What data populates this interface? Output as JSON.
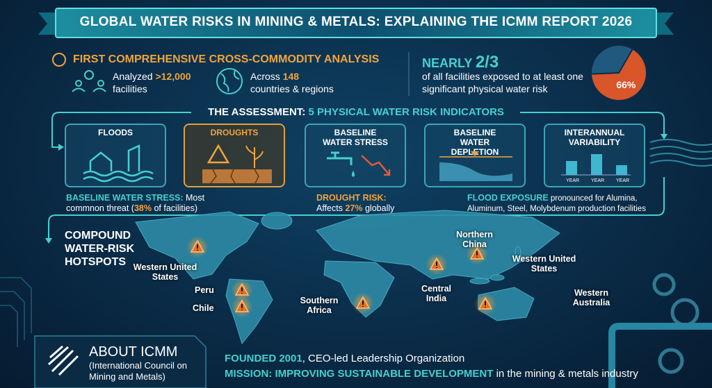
{
  "title": "GLOBAL WATER RISKS IN MINING & METALS: EXPLAINING THE ICMM REPORT 2026",
  "analysis": {
    "heading": "FIRST COMPREHENSIVE CROSS-COMMODITY ANALYSIS",
    "facilities": {
      "label": "Analyzed",
      "value": ">12,000",
      "unit": "facilities"
    },
    "countries": {
      "label": "Across",
      "value": "148",
      "unit": "countries & regions"
    }
  },
  "exposure": {
    "prefix": "NEARLY",
    "share": "2/3",
    "text": "of all facilities exposed to at least one significant physical water risk"
  },
  "chart_data": {
    "type": "pie",
    "values": [
      66
    ],
    "value_labels": [
      "66%"
    ],
    "color": "#d9552a"
  },
  "assessment": {
    "heading": "THE ASSESSMENT:",
    "subheading": "5 PHYSICAL WATER RISK INDICATORS",
    "indicators": [
      "FLOODS",
      "DROUGHTS",
      "BASELINE WATER STRESS",
      "BASELINE WATER DEPLETION",
      "INTERANNUAL VARIABILITY"
    ],
    "variability_axis": [
      "YEAR",
      "YEAR",
      "YEAR"
    ],
    "findings": [
      {
        "highlight": "BASELINE WATER STRESS:",
        "text": "Most commnon threat (",
        "value": "38%",
        "rest": "of facilities)"
      },
      {
        "highlight": "DROUGHT RISK:",
        "text": "Affects",
        "value": "27%",
        "rest": "globally"
      },
      {
        "highlight": "FLOOD EXPOSURE",
        "text": "pronounced for Alumina, Aluminum, Steel, Molybdenum production facilities"
      }
    ]
  },
  "hotspots": {
    "heading": "COMPOUND WATER-RISK HOTSPOTS",
    "sites": [
      "Western United States",
      "Peru",
      "Chile",
      "Southern Africa",
      "Central India",
      "Northern China",
      "Western United States",
      "Western Australia"
    ]
  },
  "about": {
    "heading": "ABOUT ICMM",
    "full_name": "(International Council on Mining and Metals)",
    "founded": "FOUNDED 2001",
    "founded_text": ", CEO-led Leadership Organization",
    "mission": "MISSION: IMPROVING SUSTAINABLE DEVELOPMENT",
    "mission_text": "in the mining & metals industry"
  }
}
